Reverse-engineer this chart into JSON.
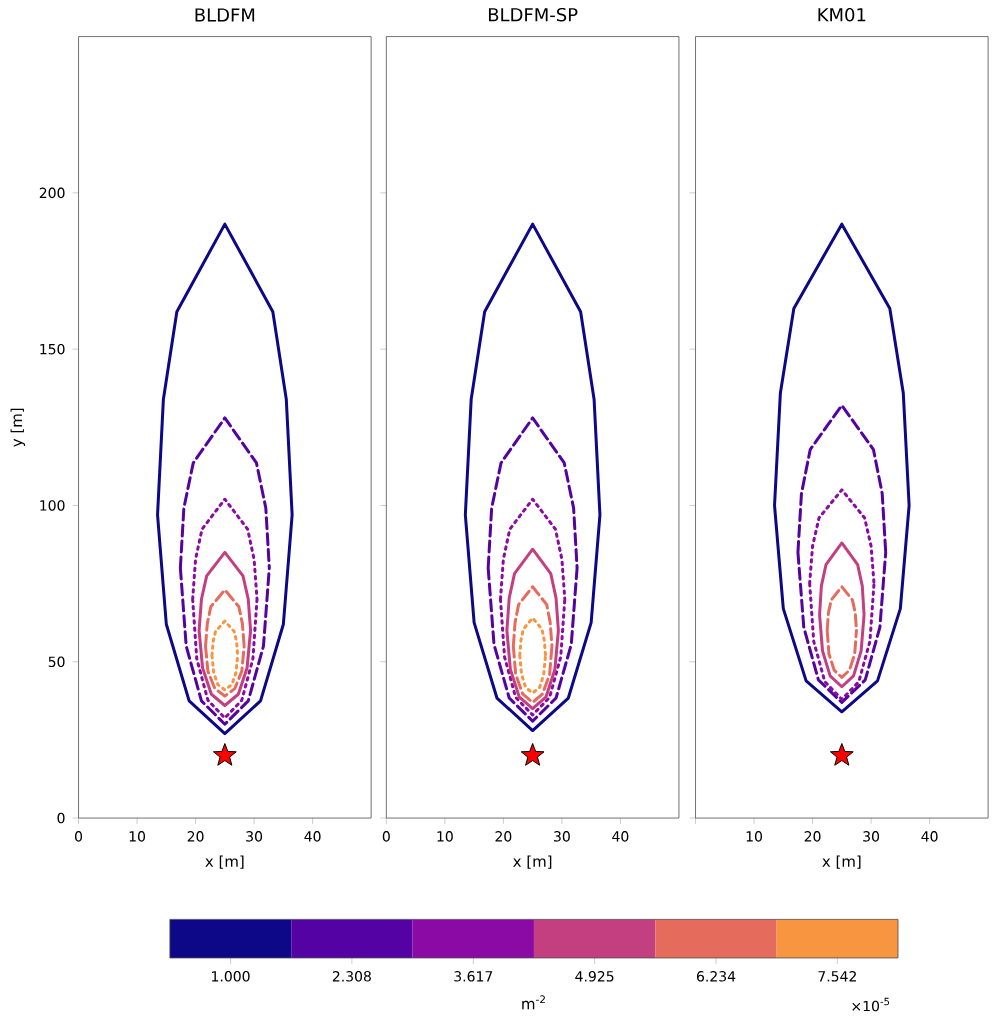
{
  "chart_data": [
    {
      "type": "line",
      "title": "BLDFM",
      "xlabel": "x [m]",
      "ylabel": "y [m]",
      "xlim": [
        0,
        50
      ],
      "ylim": [
        0,
        250
      ],
      "xticks": [
        0,
        10,
        20,
        30,
        40
      ],
      "yticks": [
        0,
        50,
        100,
        150,
        200
      ],
      "clim": [
        0.346,
        8.196
      ],
      "cticks": [
        {
          "value": 1.0,
          "label": "1.000"
        },
        {
          "value": 2.308,
          "label": "2.308"
        },
        {
          "value": 3.617,
          "label": "3.617"
        },
        {
          "value": 4.925,
          "label": "4.925"
        },
        {
          "value": 6.234,
          "label": "6.234"
        },
        {
          "value": 7.542,
          "label": "7.542"
        }
      ],
      "clabel": "m$^{-2}$",
      "annotations": [
        "×10$^{-5}$"
      ],
      "series": [
        {
          "type": "line",
          "color": "#0d0887",
          "line_style": "solid",
          "x": [
            13.5,
            15.0,
            18.9,
            25,
            31.1,
            35.0,
            36.5,
            null,
            13.5,
            14.5,
            16.8,
            25,
            33.2,
            35.5,
            36.5
          ],
          "values": [
            97,
            62,
            37.5,
            27,
            37.5,
            62,
            97,
            null,
            97,
            134,
            162,
            190,
            162,
            134,
            97
          ]
        },
        {
          "type": "line",
          "color": "#5402a3",
          "line_style": "dashed",
          "x": [
            17.4,
            18.4,
            21,
            25,
            29,
            31.6,
            32.6,
            null,
            17.4,
            18,
            19.6,
            25,
            30.4,
            32,
            32.6
          ],
          "values": [
            80,
            55,
            37.5,
            30,
            37.5,
            55,
            80,
            null,
            80,
            99.2,
            113.6,
            128,
            113.6,
            99.2,
            80
          ]
        },
        {
          "type": "line",
          "color": "#8b0aa5",
          "line_style": "dotted",
          "x": [
            19.5,
            20.2,
            22.1,
            25,
            27.9,
            29.8,
            30.5,
            null,
            19.5,
            20,
            21.1,
            25,
            28.9,
            30,
            30.5
          ],
          "values": [
            70,
            51,
            37.7,
            32,
            37.7,
            51,
            70,
            null,
            70,
            82.8,
            92.4,
            102,
            92.4,
            82.8,
            70
          ]
        },
        {
          "type": "line",
          "color": "#c33f80",
          "line_style": "solid",
          "x": [
            20.6,
            21.2,
            22.7,
            25,
            27.3,
            28.8,
            29.4,
            null,
            20.6,
            21,
            21.9,
            25,
            28.1,
            29,
            29.4
          ],
          "values": [
            60,
            48,
            39.6,
            36,
            39.6,
            48,
            60,
            null,
            60,
            70,
            77.5,
            85,
            77.5,
            70,
            60
          ]
        },
        {
          "type": "line",
          "color": "#e56b5d",
          "line_style": "dashed",
          "x": [
            21.7,
            22.1,
            23.3,
            25,
            26.7,
            27.9,
            28.3,
            null,
            21.7,
            22,
            22.6,
            25,
            27.4,
            28,
            28.3
          ],
          "values": [
            55,
            47,
            41.4,
            39,
            41.4,
            47,
            55,
            null,
            55,
            62.2,
            67.6,
            73,
            67.6,
            62.2,
            55
          ]
        },
        {
          "type": "line",
          "color": "#f89540",
          "line_style": "dotted",
          "x": [
            22.8,
            23.1,
            23.8,
            25,
            26.2,
            26.9,
            27.2,
            null,
            22.8,
            23,
            23.4,
            25,
            26.6,
            27,
            27.2
          ],
          "values": [
            52,
            46.5,
            42.7,
            41,
            42.7,
            46.5,
            52,
            null,
            52,
            56.4,
            59.7,
            63,
            59.7,
            56.4,
            52
          ]
        },
        {
          "type": "scatter",
          "color": "#ff0000",
          "marker": "star",
          "x": [
            25
          ],
          "values": [
            20
          ]
        }
      ]
    },
    {
      "type": "line",
      "title": "BLDFM-SP",
      "xlabel": "x [m]",
      "xlim": [
        0,
        50
      ],
      "ylim": [
        0,
        250
      ],
      "xticks": [
        0,
        10,
        20,
        30,
        40
      ],
      "yticks": [
        0,
        50,
        100,
        150,
        200
      ],
      "tick_labels": "x",
      "series": [
        {
          "type": "line",
          "color": "#0d0887",
          "line_style": "solid",
          "x": [
            13.5,
            15.0,
            18.9,
            25,
            31.1,
            35.0,
            36.5,
            null,
            13.5,
            14.5,
            16.8,
            25,
            33.2,
            35.5,
            36.5
          ],
          "values": [
            97,
            62.5,
            38.4,
            28,
            38.4,
            62.5,
            97,
            null,
            97,
            134,
            162,
            190,
            162,
            134,
            97
          ]
        },
        {
          "type": "line",
          "color": "#5402a3",
          "line_style": "dashed",
          "x": [
            17.4,
            18.4,
            21,
            25,
            29,
            31.6,
            32.6,
            null,
            17.4,
            18,
            19.6,
            25,
            30.4,
            32,
            32.6
          ],
          "values": [
            80,
            55.5,
            38.4,
            31,
            38.4,
            55.5,
            80,
            null,
            80,
            99.2,
            113.6,
            128,
            113.6,
            99.2,
            80
          ]
        },
        {
          "type": "line",
          "color": "#8b0aa5",
          "line_style": "dotted",
          "x": [
            19.5,
            20.2,
            22.1,
            25,
            27.9,
            29.8,
            30.5,
            null,
            19.5,
            20,
            21.1,
            25,
            28.9,
            30,
            30.5
          ],
          "values": [
            70,
            51.5,
            38.6,
            33,
            38.6,
            51.5,
            70,
            null,
            70,
            82.8,
            92.4,
            102,
            92.4,
            82.8,
            70
          ]
        },
        {
          "type": "line",
          "color": "#c33f80",
          "line_style": "solid",
          "x": [
            20.6,
            21.2,
            22.7,
            25,
            27.3,
            28.8,
            29.4,
            null,
            20.6,
            21,
            21.9,
            25,
            28.1,
            29,
            29.4
          ],
          "values": [
            60,
            47.5,
            38.8,
            35,
            38.8,
            47.5,
            60,
            null,
            60,
            70.4,
            78.2,
            86,
            78.2,
            70.4,
            60
          ]
        },
        {
          "type": "line",
          "color": "#e56b5d",
          "line_style": "dashed",
          "x": [
            21.7,
            22.1,
            23.3,
            25,
            26.7,
            27.9,
            28.3,
            null,
            21.7,
            22,
            22.6,
            25,
            27.4,
            28,
            28.3
          ],
          "values": [
            55,
            46,
            39.7,
            37,
            39.7,
            46,
            55,
            null,
            55,
            62.6,
            68.3,
            74,
            68.3,
            62.6,
            55
          ]
        },
        {
          "type": "line",
          "color": "#f89540",
          "line_style": "dotted",
          "x": [
            22.8,
            23.1,
            23.8,
            25,
            26.2,
            26.9,
            27.2,
            null,
            22.8,
            23,
            23.4,
            25,
            26.6,
            27,
            27.2
          ],
          "values": [
            52,
            46,
            41.8,
            40,
            41.8,
            46,
            52,
            null,
            52,
            56.8,
            60.4,
            64,
            60.4,
            56.8,
            52
          ]
        },
        {
          "type": "scatter",
          "color": "#ff0000",
          "marker": "star",
          "x": [
            25
          ],
          "values": [
            20
          ]
        }
      ]
    },
    {
      "type": "line",
      "title": "KM01",
      "xlabel": "x [m]",
      "xlim": [
        0,
        50
      ],
      "ylim": [
        0,
        250
      ],
      "xticks": [
        {
          "value": 0,
          "label": null
        },
        10,
        20,
        30,
        40
      ],
      "yticks": [
        0,
        50,
        100,
        150,
        200
      ],
      "tick_labels": "x",
      "series": [
        {
          "type": "line",
          "color": "#0d0887",
          "line_style": "solid",
          "x": [
            13.5,
            15.0,
            18.9,
            25,
            31.1,
            35.0,
            36.5,
            null,
            13.5,
            14.5,
            16.8,
            25,
            33.2,
            35.5,
            36.5
          ],
          "values": [
            100,
            67,
            43.9,
            34,
            43.9,
            67,
            100,
            null,
            100,
            136,
            163,
            190,
            163,
            136,
            100
          ]
        },
        {
          "type": "line",
          "color": "#5402a3",
          "line_style": "dashed",
          "x": [
            17.5,
            18.5,
            21,
            25,
            29,
            31.5,
            32.5,
            null,
            17.5,
            18.1,
            19.6,
            25,
            30.4,
            31.9,
            32.5
          ],
          "values": [
            85,
            61,
            44.2,
            37,
            44.2,
            61,
            85,
            null,
            85,
            103.8,
            117.9,
            132,
            117.9,
            103.8,
            85
          ]
        },
        {
          "type": "line",
          "color": "#8b0aa5",
          "line_style": "dotted",
          "x": [
            19.5,
            20.2,
            22.1,
            25,
            27.9,
            29.8,
            30.5,
            null,
            19.5,
            20,
            21.1,
            25,
            28.9,
            30,
            30.5
          ],
          "values": [
            75,
            56.5,
            43.6,
            38,
            43.6,
            56.5,
            75,
            null,
            75,
            87,
            96,
            105,
            96,
            87,
            75
          ]
        },
        {
          "type": "line",
          "color": "#c33f80",
          "line_style": "solid",
          "x": [
            21.2,
            21.7,
            23,
            25,
            27,
            28.3,
            28.8,
            null,
            21.2,
            21.5,
            22.3,
            25,
            27.7,
            28.5,
            28.8
          ],
          "values": [
            65,
            53.5,
            45.5,
            42,
            45.5,
            53.5,
            65,
            null,
            65,
            74.2,
            81.1,
            88,
            81.1,
            74.2,
            65
          ]
        },
        {
          "type": "line",
          "color": "#e56b5d",
          "line_style": "dashed",
          "x": [
            22.5,
            22.8,
            23.7,
            25,
            26.3,
            27.2,
            27.5,
            null,
            22.5,
            22.7,
            23.2,
            25,
            26.8,
            27.3,
            27.5
          ],
          "values": [
            60,
            52.5,
            47.3,
            45,
            47.3,
            52.5,
            60,
            null,
            60,
            65.6,
            69.8,
            74,
            69.8,
            65.6,
            60
          ]
        },
        {
          "type": "scatter",
          "color": "#ff0000",
          "marker": "star",
          "x": [
            25
          ],
          "values": [
            20
          ]
        }
      ]
    }
  ]
}
